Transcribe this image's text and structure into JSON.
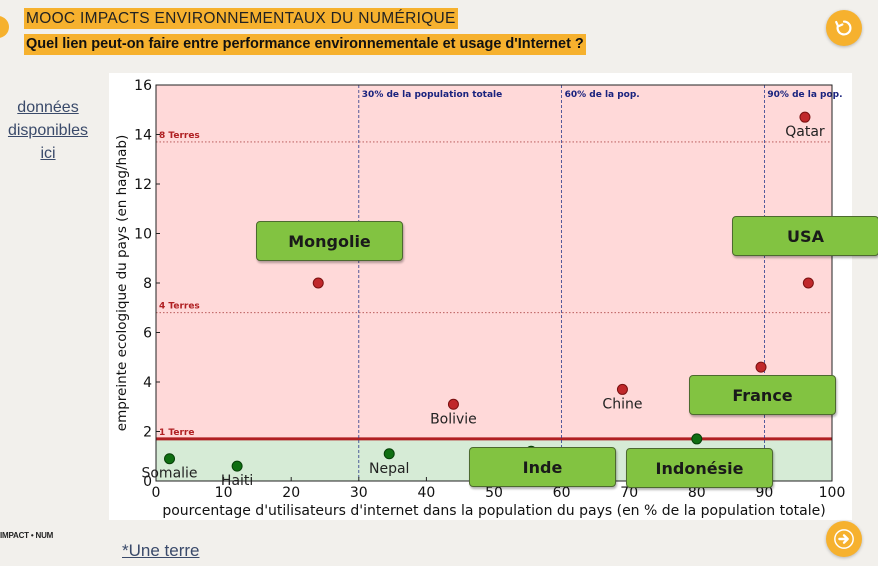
{
  "header": {
    "title": "MOOC IMPACTS ENVIRONNEMENTAUX DU NUMÉRIQUE",
    "subtitle": "Quel lien peut-on faire entre performance environnementale et usage d'Internet ?"
  },
  "side_link": {
    "line1": "données",
    "line2": "disponibles",
    "line3": "ici"
  },
  "logo": "IMPACT • NUM",
  "footnote_link": "*Une terre",
  "buttons": {
    "mongolie": "Mongolie",
    "usa": "USA",
    "france": "France",
    "inde": "Inde",
    "indonesie": "Indonésie"
  },
  "icons": {
    "restart": "restart-icon",
    "next": "arrow-right-icon"
  },
  "colors": {
    "accent": "#f6b12e",
    "button_green": "#82c341",
    "red_zone": "#ffd9d9",
    "green_zone": "#d6ebd6",
    "red_point": "#c0282b",
    "green_point": "#0f6e12"
  },
  "chart_data": {
    "type": "scatter",
    "xlabel": "pourcentage d'utilisateurs d'internet dans la population du pays (en % de la population totale)",
    "ylabel": "empreinte ecologique du pays (en hag/hab)",
    "xlim": [
      0,
      100
    ],
    "ylim": [
      0,
      16
    ],
    "xticks": [
      0,
      10,
      20,
      30,
      40,
      50,
      60,
      70,
      80,
      90,
      100
    ],
    "yticks": [
      0,
      2,
      4,
      6,
      8,
      10,
      12,
      14,
      16
    ],
    "hlines": [
      {
        "y": 13.7,
        "label": "8 Terres",
        "style": "dotted"
      },
      {
        "y": 6.8,
        "label": "4 Terres",
        "style": "dotted"
      },
      {
        "y": 1.7,
        "label": "1 Terre",
        "style": "solid"
      }
    ],
    "vlines": [
      {
        "x": 30,
        "label": "30% de la population totale"
      },
      {
        "x": 60,
        "label": "60% de la pop."
      },
      {
        "x": 90,
        "label": "90% de la pop."
      }
    ],
    "points": [
      {
        "label": "Somalie",
        "x": 2,
        "y": 0.9,
        "group": "green"
      },
      {
        "label": "Haiti",
        "x": 12,
        "y": 0.6,
        "group": "green"
      },
      {
        "label": "Nepal",
        "x": 34.5,
        "y": 1.1,
        "group": "green"
      },
      {
        "label": "",
        "x": 55.5,
        "y": 1.2,
        "group": "green"
      },
      {
        "label": "",
        "x": 80,
        "y": 1.7,
        "group": "green"
      },
      {
        "label": "",
        "x": 24,
        "y": 8.0,
        "group": "red"
      },
      {
        "label": "Bolivie",
        "x": 44,
        "y": 3.1,
        "group": "red"
      },
      {
        "label": "Chine",
        "x": 69,
        "y": 3.7,
        "group": "red"
      },
      {
        "label": "",
        "x": 89.5,
        "y": 4.6,
        "group": "red"
      },
      {
        "label": "",
        "x": 96.5,
        "y": 8.0,
        "group": "red"
      },
      {
        "label": "Qatar",
        "x": 96,
        "y": 14.7,
        "group": "red"
      }
    ]
  }
}
